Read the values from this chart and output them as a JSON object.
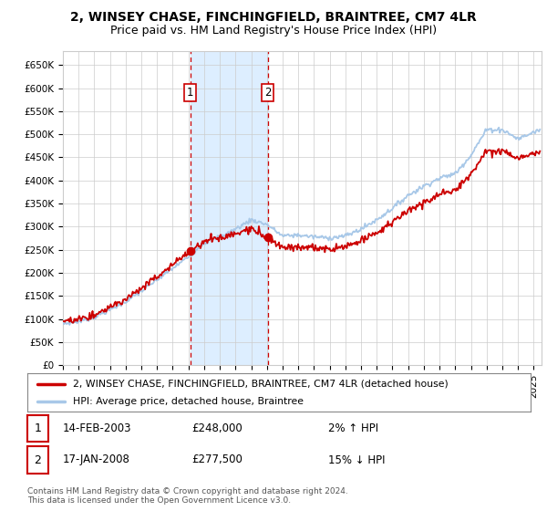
{
  "title": "2, WINSEY CHASE, FINCHINGFIELD, BRAINTREE, CM7 4LR",
  "subtitle": "Price paid vs. HM Land Registry's House Price Index (HPI)",
  "ylabel_ticks": [
    "£0",
    "£50K",
    "£100K",
    "£150K",
    "£200K",
    "£250K",
    "£300K",
    "£350K",
    "£400K",
    "£450K",
    "£500K",
    "£550K",
    "£600K",
    "£650K"
  ],
  "ytick_values": [
    0,
    50000,
    100000,
    150000,
    200000,
    250000,
    300000,
    350000,
    400000,
    450000,
    500000,
    550000,
    600000,
    650000
  ],
  "ylim": [
    0,
    680000
  ],
  "xlim_start": 1995.0,
  "xlim_end": 2025.5,
  "hpi_color": "#a8c8e8",
  "price_color": "#cc0000",
  "shaded_region_color": "#ddeeff",
  "sale1_x": 2003.12,
  "sale1_y": 248000,
  "sale2_x": 2008.05,
  "sale2_y": 277500,
  "legend_label1": "2, WINSEY CHASE, FINCHINGFIELD, BRAINTREE, CM7 4LR (detached house)",
  "legend_label2": "HPI: Average price, detached house, Braintree",
  "table_row1_num": "1",
  "table_row1_date": "14-FEB-2003",
  "table_row1_price": "£248,000",
  "table_row1_hpi": "2% ↑ HPI",
  "table_row2_num": "2",
  "table_row2_date": "17-JAN-2008",
  "table_row2_price": "£277,500",
  "table_row2_hpi": "15% ↓ HPI",
  "footnote": "Contains HM Land Registry data © Crown copyright and database right 2024.\nThis data is licensed under the Open Government Licence v3.0.",
  "bg_color": "#ffffff",
  "grid_color": "#cccccc",
  "title_fontsize": 10,
  "subtitle_fontsize": 9,
  "tick_fontsize": 7.5
}
